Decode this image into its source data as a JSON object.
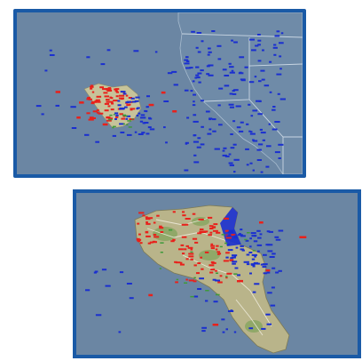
{
  "colors": {
    "ocean": "#6b86a3",
    "frame": "#1a5aa6",
    "land_top": "#6d8aa6",
    "land_bottom": "#b9b48a",
    "border_lines": "#c9d6e3",
    "red_units": "#e8211b",
    "blue_units": "#1a2fd0",
    "green_units": "#3e9a3a"
  },
  "maps": [
    {
      "id": "top",
      "kind": "regional-map-with-unit-markers",
      "region_label": ""
    },
    {
      "id": "bottom",
      "kind": "island-map-with-unit-markers",
      "region_label": ""
    }
  ]
}
